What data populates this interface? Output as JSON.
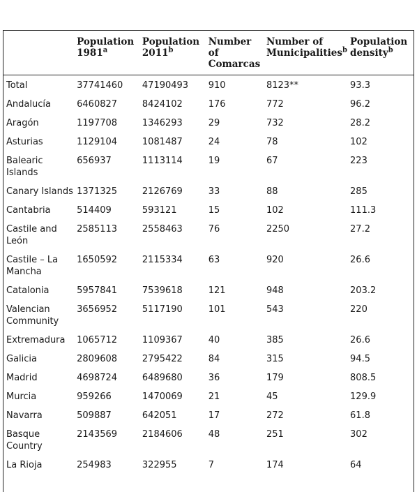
{
  "columns": [
    {
      "text": "",
      "sup": ""
    },
    {
      "text": "Population 1981",
      "sup": "a"
    },
    {
      "text": "Population 2011",
      "sup": "b"
    },
    {
      "text": "Number of Comarcas",
      "sup": ""
    },
    {
      "text": "Number of Municipalities",
      "sup": "b"
    },
    {
      "text": "Population density",
      "sup": "b"
    }
  ],
  "rows": [
    [
      "Total",
      "37741460",
      "47190493",
      "910",
      "8123**",
      "93.3"
    ],
    [
      "Andalucía",
      "6460827",
      "8424102",
      "176",
      "772",
      "96.2"
    ],
    [
      "Aragón",
      "1197708",
      "1346293",
      "29",
      "732",
      "28.2"
    ],
    [
      "Asturias",
      "1129104",
      "1081487",
      "24",
      "78",
      "102"
    ],
    [
      "Balearic Islands",
      "656937",
      "1113114",
      "19",
      "67",
      "223"
    ],
    [
      "Canary Islands",
      "1371325",
      "2126769",
      "33",
      "88",
      "285"
    ],
    [
      "Cantabria",
      "514409",
      "593121",
      "15",
      "102",
      "111.3"
    ],
    [
      "Castile and León",
      "2585113",
      "2558463",
      "76",
      "2250",
      "27.2"
    ],
    [
      "Castile – La Mancha",
      "1650592",
      "2115334",
      "63",
      "920",
      "26.6"
    ],
    [
      "Catalonia",
      "5957841",
      "7539618",
      "121",
      "948",
      "203.2"
    ],
    [
      "Valencian Community",
      "3656952",
      "5117190",
      "101",
      "543",
      "220"
    ],
    [
      "Extremadura",
      "1065712",
      "1109367",
      "40",
      "385",
      "26.6"
    ],
    [
      "Galicia",
      "2809608",
      "2795422",
      "84",
      "315",
      "94.5"
    ],
    [
      "Madrid",
      "4698724",
      "6489680",
      "36",
      "179",
      "808.5"
    ],
    [
      "Murcia",
      "959266",
      "1470069",
      "21",
      "45",
      "129.9"
    ],
    [
      "Navarra",
      "509887",
      "642051",
      "17",
      "272",
      "61.8"
    ],
    [
      "Basque Country",
      "2143569",
      "2184606",
      "48",
      "251",
      "302"
    ],
    [
      "La Rioja",
      "254983",
      "322955",
      "7",
      " 174",
      "64"
    ]
  ]
}
